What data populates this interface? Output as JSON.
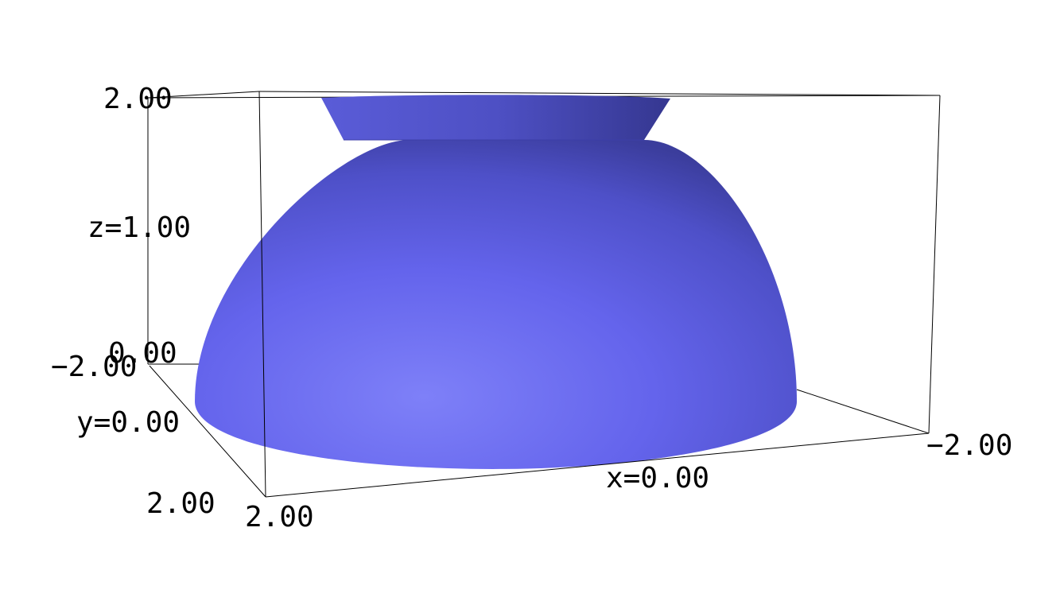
{
  "chart_data": {
    "type": "surface3d",
    "surface": {
      "shape": "hemisphere with conical frustum on top",
      "color": "#6666f0",
      "hemisphere_radius": 2.0,
      "frustum_radius_bottom": 1.6,
      "frustum_radius_top": 2.0,
      "frustum_z_range": [
        1.7,
        2.0
      ]
    },
    "axes": {
      "x": {
        "range": [
          2.0,
          -2.0
        ],
        "label": "x=0.00",
        "tick_labels": [
          "2.00",
          "-2.00"
        ]
      },
      "y": {
        "range": [
          -2.0,
          2.0
        ],
        "label": "y=0.00",
        "tick_labels": [
          "-2.00",
          "2.00"
        ]
      },
      "z": {
        "range": [
          0.0,
          2.0
        ],
        "label": "z=1.00",
        "tick_labels": [
          "0.00",
          "2.00"
        ]
      }
    },
    "bounding_box": true,
    "text": {
      "z_max": "2.00",
      "z_mid": "z=1.00",
      "z_min": "0.00",
      "y_min": "−2.00",
      "y_mid": "y=0.00",
      "y_max": "2.00",
      "x_min": "2.00",
      "x_mid": "x=0.00",
      "x_max": "−2.00"
    }
  }
}
